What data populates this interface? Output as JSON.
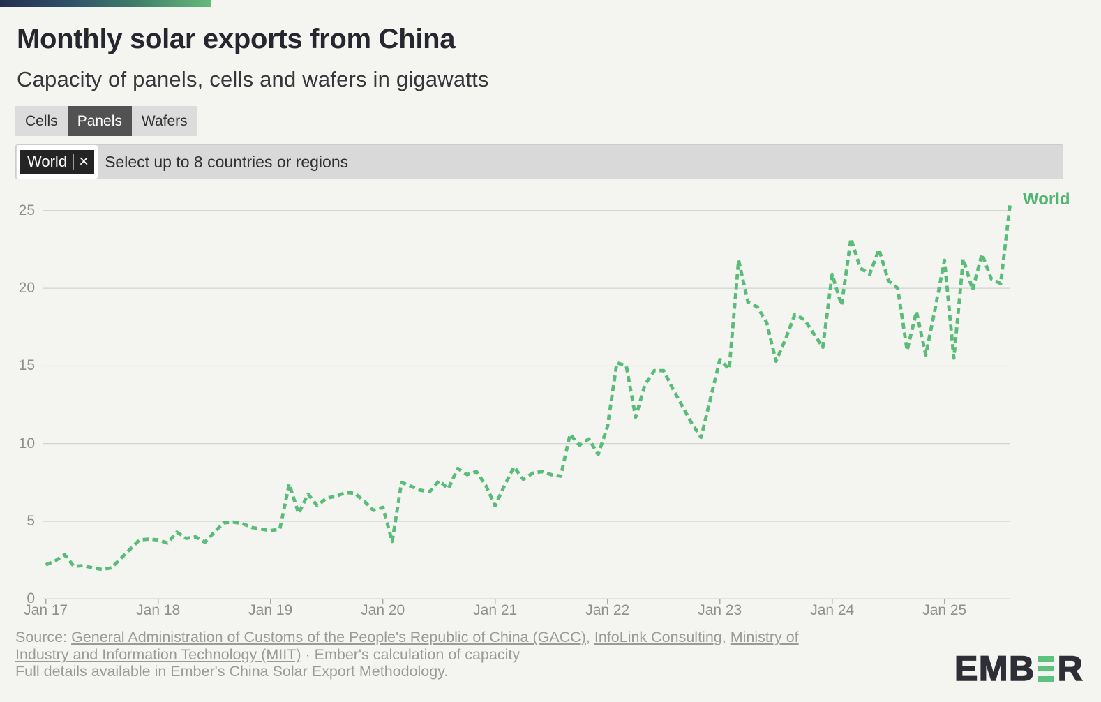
{
  "header": {
    "title": "Monthly solar exports from China",
    "subtitle": "Capacity of panels, cells and wafers in gigawatts"
  },
  "tabs": {
    "items": [
      {
        "label": "Cells",
        "active": false
      },
      {
        "label": "Panels",
        "active": true
      },
      {
        "label": "Wafers",
        "active": false
      }
    ]
  },
  "select": {
    "chip": "World",
    "remove_icon": "×",
    "placeholder": "Select up to 8 countries or regions"
  },
  "chart_data": {
    "type": "line",
    "title": "Monthly solar exports from China",
    "subtitle": "Capacity of panels, cells and wafers in gigawatts",
    "ylabel": "gigawatts",
    "xlabel": "",
    "x_start": "Jan 2017",
    "x_frequency": "monthly",
    "x_tick_labels": [
      "Jan 17",
      "Jan 18",
      "Jan 19",
      "Jan 20",
      "Jan 21",
      "Jan 22",
      "Jan 23",
      "Jan 24",
      "Jan 25"
    ],
    "y_ticks": [
      0,
      5,
      10,
      15,
      20,
      25
    ],
    "ylim": [
      0,
      25
    ],
    "grid": "horizontal",
    "legend_position": "right-end",
    "line_style": "dashed",
    "line_color": "#5abc79",
    "series": [
      {
        "name": "World",
        "values": [
          2.2,
          2.45,
          2.85,
          2.1,
          2.15,
          2.0,
          1.9,
          2.0,
          2.6,
          3.2,
          3.8,
          3.85,
          3.8,
          3.6,
          4.3,
          3.9,
          4.0,
          3.65,
          4.3,
          4.9,
          4.95,
          4.85,
          4.6,
          4.5,
          4.4,
          4.5,
          7.4,
          5.5,
          6.75,
          6.0,
          6.5,
          6.6,
          6.85,
          6.8,
          6.3,
          5.7,
          5.9,
          3.7,
          7.5,
          7.25,
          7.0,
          6.9,
          7.6,
          7.1,
          8.4,
          8.0,
          8.2,
          7.3,
          6.0,
          7.3,
          8.5,
          7.7,
          8.1,
          8.2,
          8.0,
          7.9,
          10.6,
          9.9,
          10.3,
          9.3,
          11.1,
          15.2,
          15.0,
          11.7,
          13.8,
          14.7,
          14.7,
          13.5,
          12.4,
          11.3,
          10.4,
          12.9,
          15.4,
          14.8,
          21.8,
          19.1,
          18.8,
          17.8,
          15.3,
          16.7,
          18.3,
          18.0,
          17.1,
          16.2,
          20.9,
          18.9,
          23.2,
          21.3,
          20.9,
          22.5,
          20.5,
          20.0,
          16.0,
          18.5,
          15.7,
          18.7,
          21.8,
          15.5,
          21.9,
          19.9,
          22.2,
          20.6,
          20.3,
          25.4
        ]
      }
    ]
  },
  "footer": {
    "source_prefix": "Source: ",
    "links": [
      "General Administration of Customs of the People's Republic of China (GACC)",
      "InfoLink Consulting",
      "Ministry of Industry and Information Technology (MIIT)"
    ],
    "sep1": ", ",
    "sep2": ", ",
    "suffix": " · Ember's calculation of capacity",
    "details": "Full details available in Ember's China Solar Export Methodology."
  },
  "logo": {
    "left": "EMB",
    "right": "R",
    "bars_icon": "ember-reversed-e"
  }
}
